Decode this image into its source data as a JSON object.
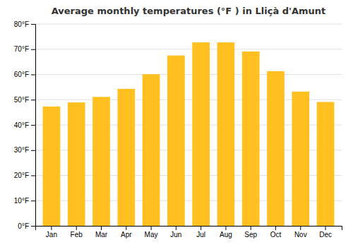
{
  "chart_data": {
    "type": "bar",
    "title": "Average monthly temperatures (°F ) in Lliçà d'Amunt",
    "categories": [
      "Jan",
      "Feb",
      "Mar",
      "Apr",
      "May",
      "Jun",
      "Jul",
      "Aug",
      "Sep",
      "Oct",
      "Nov",
      "Dec"
    ],
    "values": [
      47.3,
      48.9,
      51.1,
      54.3,
      60.1,
      67.5,
      72.7,
      72.7,
      69.1,
      61.3,
      53.2,
      49.1
    ],
    "color": "#FFC020",
    "ylim": [
      0,
      80
    ],
    "yticks": [
      {
        "value": 0,
        "label": "0°F"
      },
      {
        "value": 10,
        "label": "10°F"
      },
      {
        "value": 20,
        "label": "20°F"
      },
      {
        "value": 30,
        "label": "30°F"
      },
      {
        "value": 40,
        "label": "40°F"
      },
      {
        "value": 50,
        "label": "50°F"
      },
      {
        "value": 60,
        "label": "60°F"
      },
      {
        "value": 70,
        "label": "70°F"
      },
      {
        "value": 80,
        "label": "80°F"
      }
    ],
    "grid": true
  }
}
